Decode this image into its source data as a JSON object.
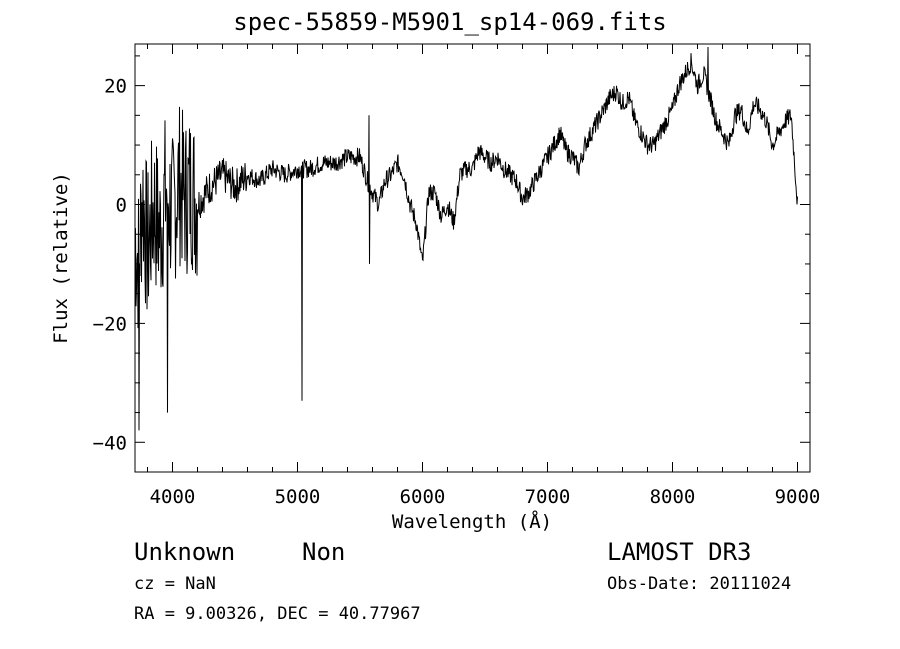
{
  "chart_data": {
    "type": "line",
    "title": "spec-55859-M5901_sp14-069.fits",
    "xlabel": "Wavelength (Å)",
    "ylabel": "Flux (relative)",
    "xlim": [
      3700,
      9100
    ],
    "ylim": [
      -45,
      27
    ],
    "x_ticks": [
      4000,
      5000,
      6000,
      7000,
      8000,
      9000
    ],
    "y_ticks": [
      20,
      0,
      -20,
      -40
    ],
    "grid": false,
    "series": [
      {
        "x": [
          3700,
          3730,
          3760,
          3800,
          3850,
          3900,
          3950,
          4000,
          4050,
          4100,
          4150,
          4200,
          4300,
          4400,
          4500,
          4600,
          4700,
          4800,
          4900,
          5000,
          5100,
          5200,
          5300,
          5400,
          5500,
          5560,
          5600,
          5650,
          5700,
          5750,
          5800,
          5850,
          5900,
          5950,
          6000,
          6050,
          6100,
          6150,
          6200,
          6250,
          6300,
          6350,
          6400,
          6450,
          6500,
          6550,
          6600,
          6650,
          6700,
          6750,
          6800,
          6850,
          6900,
          6950,
          7000,
          7050,
          7100,
          7150,
          7200,
          7250,
          7300,
          7350,
          7400,
          7450,
          7500,
          7550,
          7600,
          7650,
          7700,
          7750,
          7800,
          7850,
          7900,
          7950,
          8000,
          8050,
          8100,
          8150,
          8200,
          8250,
          8300,
          8350,
          8400,
          8450,
          8500,
          8550,
          8600,
          8650,
          8700,
          8750,
          8800,
          8850,
          8900,
          8950,
          9000
        ],
        "y": [
          -5,
          -10,
          2,
          -8,
          0,
          -5,
          3,
          -2,
          4,
          1,
          3,
          0,
          3,
          5,
          3,
          5,
          4,
          6,
          5,
          6,
          6,
          7,
          7,
          8,
          8,
          4,
          2,
          0,
          4,
          5,
          7,
          5,
          0,
          -3,
          -10,
          2,
          2,
          -2,
          0,
          -3,
          5,
          6,
          6,
          9,
          8,
          7,
          8,
          6,
          5,
          4,
          1,
          2,
          4,
          6,
          8,
          10,
          12,
          9,
          8,
          6,
          10,
          12,
          14,
          16,
          18,
          19,
          17,
          18,
          14,
          12,
          10,
          10,
          12,
          14,
          16,
          20,
          22,
          24,
          20,
          22,
          18,
          14,
          12,
          10,
          15,
          16,
          12,
          17,
          16,
          14,
          10,
          12,
          14,
          15,
          0
        ]
      }
    ]
  },
  "footer": {
    "object_class": "Unknown",
    "subclass": "Non",
    "cz": "cz = NaN",
    "coords": "RA =   9.00326, DEC =  40.77967",
    "survey": "LAMOST DR3",
    "obs_date": "Obs-Date: 20111024"
  }
}
